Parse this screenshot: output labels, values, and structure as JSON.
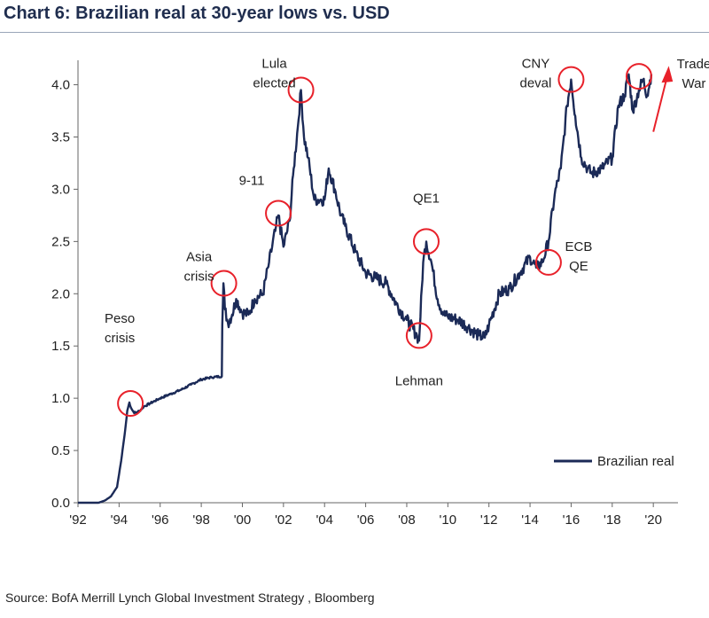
{
  "chart_data": {
    "type": "line",
    "title": "Chart 6: Brazilian real at 30-year lows vs. USD",
    "source": "Source: BofA Merrill Lynch Global Investment Strategy , Bloomberg",
    "xlabel": "",
    "ylabel": "",
    "xlim": [
      1992,
      2021.2
    ],
    "ylim": [
      0.0,
      4.2
    ],
    "yticks": [
      "0.0",
      "0.5",
      "1.0",
      "1.5",
      "2.0",
      "2.5",
      "3.0",
      "3.5",
      "4.0"
    ],
    "ytick_values": [
      0.0,
      0.5,
      1.0,
      1.5,
      2.0,
      2.5,
      3.0,
      3.5,
      4.0
    ],
    "xticks": [
      "'92",
      "'94",
      "'96",
      "'98",
      "'00",
      "'02",
      "'04",
      "'06",
      "'08",
      "'10",
      "'12",
      "'14",
      "'16",
      "'18",
      "'20"
    ],
    "xtick_values": [
      1992,
      1994,
      1996,
      1998,
      2000,
      2002,
      2004,
      2006,
      2008,
      2010,
      2012,
      2014,
      2016,
      2018,
      2020
    ],
    "legend": {
      "label": "Brazilian real",
      "position": "bottom-right"
    },
    "grid": false,
    "series": [
      {
        "name": "Brazilian real",
        "color": "#1b2a57",
        "x": [
          1992.0,
          1992.5,
          1993.0,
          1993.3,
          1993.6,
          1993.9,
          1994.1,
          1994.3,
          1994.4,
          1994.5,
          1994.6,
          1994.7,
          1994.8,
          1995.0,
          1995.2,
          1995.5,
          1996.0,
          1996.5,
          1997.0,
          1997.5,
          1998.0,
          1998.5,
          1999.0,
          1999.02,
          1999.08,
          1999.15,
          1999.3,
          1999.5,
          1999.7,
          2000.0,
          2000.3,
          2000.6,
          2001.0,
          2001.3,
          2001.6,
          2001.75,
          2002.0,
          2002.3,
          2002.5,
          2002.7,
          2002.85,
          2003.0,
          2003.2,
          2003.5,
          2003.8,
          2004.0,
          2004.2,
          2004.5,
          2004.8,
          2005.0,
          2005.5,
          2006.0,
          2006.5,
          2007.0,
          2007.5,
          2008.0,
          2008.5,
          2008.6,
          2008.8,
          2008.95,
          2009.2,
          2009.5,
          2009.8,
          2010.0,
          2010.5,
          2011.0,
          2011.5,
          2011.8,
          2012.0,
          2012.5,
          2013.0,
          2013.5,
          2014.0,
          2014.3,
          2014.6,
          2014.9,
          2015.2,
          2015.5,
          2015.8,
          2016.0,
          2016.2,
          2016.5,
          2016.8,
          2017.0,
          2017.5,
          2018.0,
          2018.3,
          2018.6,
          2018.8,
          2019.0,
          2019.3,
          2019.5,
          2019.7,
          2019.9
        ],
        "values": [
          0.0,
          0.0,
          0.0,
          0.02,
          0.06,
          0.15,
          0.4,
          0.7,
          0.88,
          0.96,
          0.9,
          0.87,
          0.86,
          0.88,
          0.92,
          0.95,
          1.0,
          1.04,
          1.08,
          1.13,
          1.18,
          1.2,
          1.21,
          1.7,
          2.1,
          1.85,
          1.72,
          1.8,
          1.95,
          1.82,
          1.8,
          1.95,
          2.0,
          2.3,
          2.6,
          2.75,
          2.45,
          2.7,
          3.2,
          3.6,
          3.95,
          3.5,
          3.3,
          2.9,
          2.9,
          2.9,
          3.2,
          3.0,
          2.75,
          2.65,
          2.4,
          2.2,
          2.15,
          2.1,
          1.9,
          1.75,
          1.6,
          1.55,
          2.3,
          2.5,
          2.3,
          1.95,
          1.8,
          1.78,
          1.75,
          1.68,
          1.6,
          1.58,
          1.7,
          2.0,
          2.05,
          2.2,
          2.35,
          2.25,
          2.3,
          2.5,
          2.95,
          3.2,
          3.8,
          4.05,
          3.7,
          3.3,
          3.2,
          3.15,
          3.2,
          3.3,
          3.8,
          3.9,
          4.1,
          3.75,
          3.95,
          4.05,
          3.9,
          4.1
        ]
      }
    ],
    "annotations": [
      {
        "id": "peso",
        "lines": [
          "Peso",
          "crisis"
        ],
        "x": 1994.55,
        "y": 0.95
      },
      {
        "id": "asia",
        "lines": [
          "Asia",
          "crisis"
        ],
        "x": 1999.1,
        "y": 2.1
      },
      {
        "id": "911",
        "lines": [
          "9-11"
        ],
        "x": 2001.75,
        "y": 2.77
      },
      {
        "id": "lula",
        "lines": [
          "Lula",
          "elected"
        ],
        "x": 2002.85,
        "y": 3.95
      },
      {
        "id": "lehman",
        "lines": [
          "Lehman"
        ],
        "x": 2008.6,
        "y": 1.6
      },
      {
        "id": "qe1",
        "lines": [
          "QE1"
        ],
        "x": 2008.95,
        "y": 2.5
      },
      {
        "id": "ecb",
        "lines": [
          "ECB",
          "QE"
        ],
        "x": 2014.9,
        "y": 2.3
      },
      {
        "id": "cny",
        "lines": [
          "CNY",
          "deval"
        ],
        "x": 2016.0,
        "y": 4.05
      },
      {
        "id": "trade",
        "lines": [
          "Trade",
          "War"
        ],
        "x": 2019.3,
        "y": 4.08
      }
    ]
  }
}
